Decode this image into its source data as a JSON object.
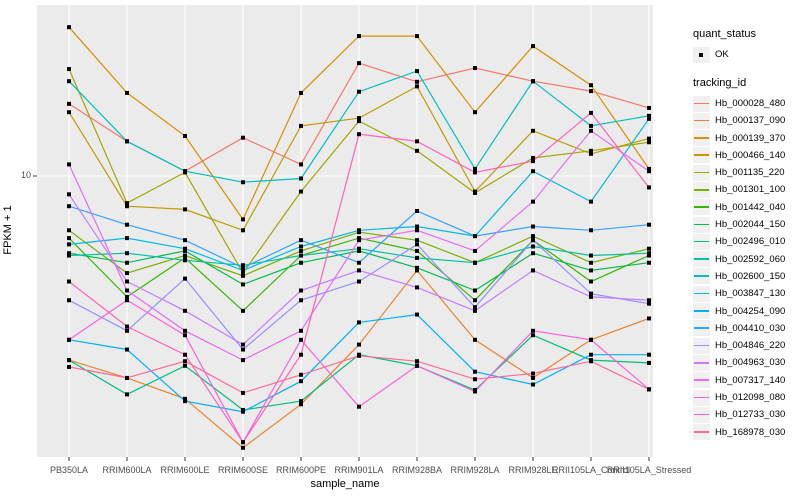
{
  "figure": {
    "background": "#FFFFFF",
    "panel_background": "#EBEBEB",
    "gridline_color": "#FFFFFF",
    "tick_color": "#333333",
    "point_color": "#000000"
  },
  "axes": {
    "x": {
      "title": "sample_name",
      "tick_labels": [
        "PB350LA",
        "RRIM600LA",
        "RRIM600LE",
        "RRIM600SE",
        "RRIM600PE",
        "RRIM901LA",
        "RRIM928BA",
        "RRIM928LA",
        "RRIM928LE",
        "RRII105LA_Control",
        "RRII105LA_Stressed"
      ]
    },
    "y": {
      "title": "FPKM + 1",
      "tick_labels": [
        "10"
      ]
    }
  },
  "legend": {
    "quant_status": {
      "title": "quant_status",
      "items": [
        {
          "label": "OK",
          "marker": "black-point"
        }
      ]
    },
    "tracking_id": {
      "title": "tracking_id"
    }
  },
  "chart_data": {
    "type": "line",
    "title": "",
    "xlabel": "sample_name",
    "ylabel": "FPKM + 1",
    "y_scale": "log10",
    "ylim": [
      1,
      40
    ],
    "y_ticks": [
      {
        "value": 10,
        "label": "10"
      }
    ],
    "grid": "on",
    "legend_position": "right",
    "point_marker": {
      "shape": "square",
      "color": "#000000",
      "size": 4
    },
    "samples": [
      "PB350LA",
      "RRIM600LA",
      "RRIM600LE",
      "RRIM600SE",
      "RRIM600PE",
      "RRIM901LA",
      "RRIM928BA",
      "RRIM928LA",
      "RRIM928LE",
      "RRII105LA_Control",
      "RRII105LA_Stressed"
    ],
    "series": [
      {
        "name": "Hb_000028_480",
        "color": "#F8766D",
        "values": [
          18.1,
          13.3,
          10.4,
          13.7,
          11,
          25.3,
          21.7,
          24.3,
          21.8,
          20.1,
          17.5
        ]
      },
      {
        "name": "Hb_000137_090",
        "color": "#EA8331",
        "values": [
          2.2,
          1.9,
          1.6,
          1.07,
          1.53,
          2.5,
          4.6,
          2.6,
          1.9,
          2.6,
          3.1
        ]
      },
      {
        "name": "Hb_000139_370",
        "color": "#D89000",
        "values": [
          34,
          19.8,
          13.9,
          7,
          19.8,
          31.6,
          31.6,
          16.9,
          29.1,
          21.1,
          10.6
        ]
      },
      {
        "name": "Hb_000466_140",
        "color": "#C09B00",
        "values": [
          16.9,
          7.8,
          7.6,
          6.4,
          15.1,
          16.1,
          20.9,
          8.8,
          14.5,
          12,
          13.6
        ]
      },
      {
        "name": "Hb_001135_220",
        "color": "#A3A500",
        "values": [
          24.1,
          8,
          10.3,
          4.5,
          8.8,
          15.7,
          12.3,
          8.7,
          11.6,
          12.3,
          13.2
        ]
      },
      {
        "name": "Hb_001301_100",
        "color": "#7CAE00",
        "values": [
          6.4,
          4.5,
          5.2,
          4.4,
          5.4,
          6.3,
          5.9,
          4.9,
          6.1,
          4.9,
          5.5
        ]
      },
      {
        "name": "Hb_001442_040",
        "color": "#39B600",
        "values": [
          6,
          3.7,
          5.1,
          3.3,
          5.2,
          6,
          5.4,
          3.6,
          5.9,
          4.2,
          5.2
        ]
      },
      {
        "name": "Hb_002044_150",
        "color": "#00BB4E",
        "values": [
          5.3,
          4.9,
          5.4,
          4.1,
          4.9,
          5.4,
          4.7,
          3.9,
          5.3,
          4.6,
          4.9
        ]
      },
      {
        "name": "Hb_002496_010",
        "color": "#00BF7D",
        "values": [
          2.2,
          1.66,
          2.1,
          1.46,
          1.57,
          2.3,
          2.1,
          1.72,
          2.7,
          2.2,
          2.15
        ]
      },
      {
        "name": "Hb_002592_060",
        "color": "#00C1A3",
        "values": [
          5.2,
          5.3,
          5,
          4.8,
          5.2,
          5.5,
          5.1,
          4.9,
          5.6,
          5.2,
          5.3
        ]
      },
      {
        "name": "Hb_002600_150",
        "color": "#00BFC4",
        "values": [
          21.8,
          13.3,
          10.4,
          9.5,
          9.8,
          20,
          23.7,
          10.6,
          21.8,
          15.1,
          16.4
        ]
      },
      {
        "name": "Hb_003847_130",
        "color": "#00BAE0",
        "values": [
          5.7,
          6,
          5.5,
          4.6,
          5.6,
          6.4,
          6.6,
          6.1,
          10.4,
          8.1,
          16
        ]
      },
      {
        "name": "Hb_004254_090",
        "color": "#00B0F6",
        "values": [
          2.6,
          2.4,
          1.57,
          1.44,
          1.85,
          3,
          3.2,
          2,
          1.8,
          2.3,
          2.3
        ]
      },
      {
        "name": "Hb_004410_030",
        "color": "#35A2FF",
        "values": [
          7.8,
          6.7,
          5.9,
          4.7,
          5.9,
          4.9,
          7.5,
          6.1,
          6.6,
          6.4,
          6.7
        ]
      },
      {
        "name": "Hb_004846_220",
        "color": "#9590FF",
        "values": [
          3.6,
          2.8,
          4.3,
          2.4,
          3.6,
          4.2,
          5.7,
          3.4,
          5.9,
          3.8,
          3.5
        ]
      },
      {
        "name": "Hb_004963_030",
        "color": "#C77CFF",
        "values": [
          8.6,
          4.2,
          3.3,
          2.5,
          3.9,
          4.6,
          4,
          3.3,
          4.6,
          3.7,
          3.6
        ]
      },
      {
        "name": "Hb_007317_140",
        "color": "#E76BF3",
        "values": [
          11,
          3.9,
          2.8,
          2.2,
          2.8,
          5.9,
          6.4,
          5.4,
          8.1,
          14.5,
          10.4
        ]
      },
      {
        "name": "Hb_012098_080",
        "color": "#FA62DB",
        "values": [
          2.6,
          3.6,
          2.7,
          1.12,
          2.6,
          1.5,
          2.1,
          1.7,
          2.8,
          2.6,
          1.73
        ]
      },
      {
        "name": "Hb_012733_030",
        "color": "#FF62BC",
        "values": [
          4.2,
          2.9,
          2.3,
          1.12,
          2.3,
          14.1,
          13.3,
          10.3,
          11.3,
          16.8,
          9.1
        ]
      },
      {
        "name": "Hb_168978_030",
        "color": "#FF6A98",
        "values": [
          2.08,
          1.9,
          2.18,
          1.68,
          1.95,
          2.28,
          2.18,
          1.88,
          1.97,
          2.18,
          1.73
        ]
      }
    ]
  }
}
